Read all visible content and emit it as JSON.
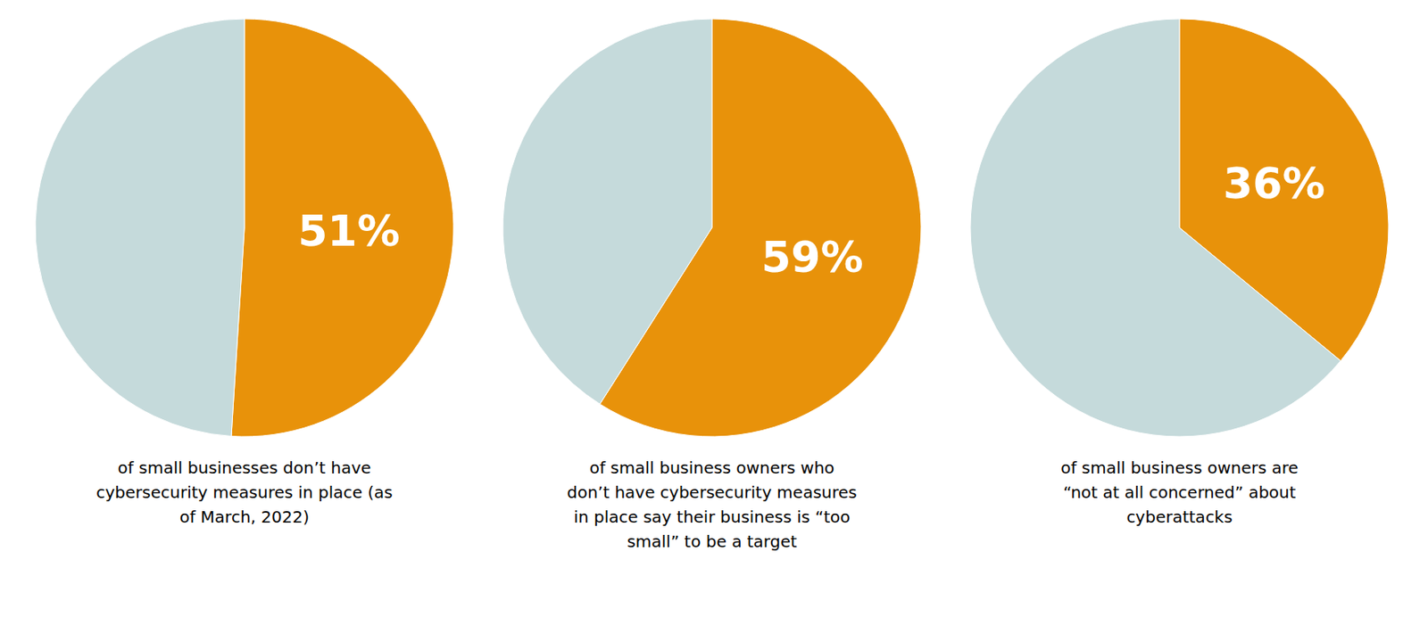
{
  "chart_data": [
    {
      "type": "pie",
      "values": [
        51,
        49
      ],
      "value_labels": [
        "51%",
        null
      ],
      "colors": [
        "#E8920A",
        "#C5DADB"
      ],
      "data_labels": true,
      "annotations": [
        "of small businesses don’t have\ncybersecurity measures in place (as\nof March, 2022)"
      ]
    },
    {
      "type": "pie",
      "values": [
        59,
        41
      ],
      "value_labels": [
        "59%",
        null
      ],
      "colors": [
        "#E8920A",
        "#C5DADB"
      ],
      "data_labels": true,
      "annotations": [
        "of small business owners who\ndon’t have cybersecurity measures\nin place say their business is “too\nsmall” to be a target"
      ]
    },
    {
      "type": "pie",
      "values": [
        36,
        64
      ],
      "value_labels": [
        "36%",
        null
      ],
      "colors": [
        "#E8920A",
        "#C5DADB"
      ],
      "data_labels": true,
      "annotations": [
        "of small business owners are\n“not at all concerned” about\ncyberattacks"
      ]
    }
  ]
}
